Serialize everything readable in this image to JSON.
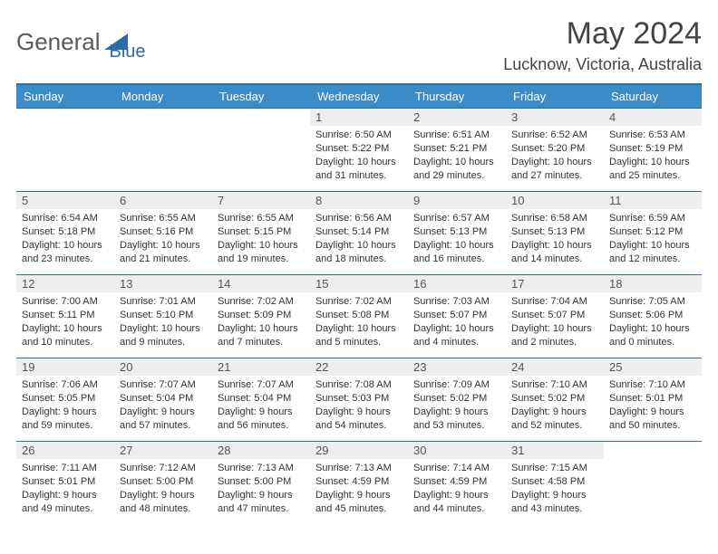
{
  "brand": {
    "part1": "General",
    "part2": "Blue"
  },
  "title": "May 2024",
  "location": "Lucknow, Victoria, Australia",
  "colors": {
    "header_bg": "#3b8bc9",
    "header_border": "#2d6aa8",
    "daynum_bg": "#eeeeee",
    "text": "#333333",
    "brand_blue": "#2d6aa8",
    "brand_gray": "#5a5a5a"
  },
  "day_headers": [
    "Sunday",
    "Monday",
    "Tuesday",
    "Wednesday",
    "Thursday",
    "Friday",
    "Saturday"
  ],
  "weeks": [
    [
      null,
      null,
      null,
      {
        "n": "1",
        "sr": "6:50 AM",
        "ss": "5:22 PM",
        "dl": "10 hours and 31 minutes."
      },
      {
        "n": "2",
        "sr": "6:51 AM",
        "ss": "5:21 PM",
        "dl": "10 hours and 29 minutes."
      },
      {
        "n": "3",
        "sr": "6:52 AM",
        "ss": "5:20 PM",
        "dl": "10 hours and 27 minutes."
      },
      {
        "n": "4",
        "sr": "6:53 AM",
        "ss": "5:19 PM",
        "dl": "10 hours and 25 minutes."
      }
    ],
    [
      {
        "n": "5",
        "sr": "6:54 AM",
        "ss": "5:18 PM",
        "dl": "10 hours and 23 minutes."
      },
      {
        "n": "6",
        "sr": "6:55 AM",
        "ss": "5:16 PM",
        "dl": "10 hours and 21 minutes."
      },
      {
        "n": "7",
        "sr": "6:55 AM",
        "ss": "5:15 PM",
        "dl": "10 hours and 19 minutes."
      },
      {
        "n": "8",
        "sr": "6:56 AM",
        "ss": "5:14 PM",
        "dl": "10 hours and 18 minutes."
      },
      {
        "n": "9",
        "sr": "6:57 AM",
        "ss": "5:13 PM",
        "dl": "10 hours and 16 minutes."
      },
      {
        "n": "10",
        "sr": "6:58 AM",
        "ss": "5:13 PM",
        "dl": "10 hours and 14 minutes."
      },
      {
        "n": "11",
        "sr": "6:59 AM",
        "ss": "5:12 PM",
        "dl": "10 hours and 12 minutes."
      }
    ],
    [
      {
        "n": "12",
        "sr": "7:00 AM",
        "ss": "5:11 PM",
        "dl": "10 hours and 10 minutes."
      },
      {
        "n": "13",
        "sr": "7:01 AM",
        "ss": "5:10 PM",
        "dl": "10 hours and 9 minutes."
      },
      {
        "n": "14",
        "sr": "7:02 AM",
        "ss": "5:09 PM",
        "dl": "10 hours and 7 minutes."
      },
      {
        "n": "15",
        "sr": "7:02 AM",
        "ss": "5:08 PM",
        "dl": "10 hours and 5 minutes."
      },
      {
        "n": "16",
        "sr": "7:03 AM",
        "ss": "5:07 PM",
        "dl": "10 hours and 4 minutes."
      },
      {
        "n": "17",
        "sr": "7:04 AM",
        "ss": "5:07 PM",
        "dl": "10 hours and 2 minutes."
      },
      {
        "n": "18",
        "sr": "7:05 AM",
        "ss": "5:06 PM",
        "dl": "10 hours and 0 minutes."
      }
    ],
    [
      {
        "n": "19",
        "sr": "7:06 AM",
        "ss": "5:05 PM",
        "dl": "9 hours and 59 minutes."
      },
      {
        "n": "20",
        "sr": "7:07 AM",
        "ss": "5:04 PM",
        "dl": "9 hours and 57 minutes."
      },
      {
        "n": "21",
        "sr": "7:07 AM",
        "ss": "5:04 PM",
        "dl": "9 hours and 56 minutes."
      },
      {
        "n": "22",
        "sr": "7:08 AM",
        "ss": "5:03 PM",
        "dl": "9 hours and 54 minutes."
      },
      {
        "n": "23",
        "sr": "7:09 AM",
        "ss": "5:02 PM",
        "dl": "9 hours and 53 minutes."
      },
      {
        "n": "24",
        "sr": "7:10 AM",
        "ss": "5:02 PM",
        "dl": "9 hours and 52 minutes."
      },
      {
        "n": "25",
        "sr": "7:10 AM",
        "ss": "5:01 PM",
        "dl": "9 hours and 50 minutes."
      }
    ],
    [
      {
        "n": "26",
        "sr": "7:11 AM",
        "ss": "5:01 PM",
        "dl": "9 hours and 49 minutes."
      },
      {
        "n": "27",
        "sr": "7:12 AM",
        "ss": "5:00 PM",
        "dl": "9 hours and 48 minutes."
      },
      {
        "n": "28",
        "sr": "7:13 AM",
        "ss": "5:00 PM",
        "dl": "9 hours and 47 minutes."
      },
      {
        "n": "29",
        "sr": "7:13 AM",
        "ss": "4:59 PM",
        "dl": "9 hours and 45 minutes."
      },
      {
        "n": "30",
        "sr": "7:14 AM",
        "ss": "4:59 PM",
        "dl": "9 hours and 44 minutes."
      },
      {
        "n": "31",
        "sr": "7:15 AM",
        "ss": "4:58 PM",
        "dl": "9 hours and 43 minutes."
      },
      null
    ]
  ],
  "labels": {
    "sunrise": "Sunrise:",
    "sunset": "Sunset:",
    "daylight": "Daylight:"
  }
}
